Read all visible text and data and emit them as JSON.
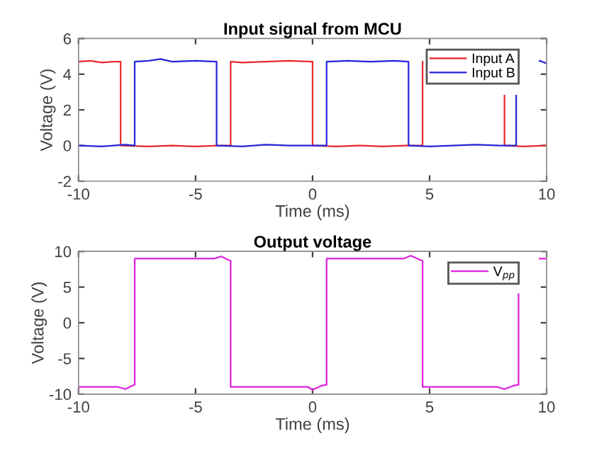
{
  "chart_data": [
    {
      "type": "line",
      "title": "Input signal from MCU",
      "xlabel": "Time (ms)",
      "ylabel": "Voltage (V)",
      "xlim": [
        -10,
        10
      ],
      "xticks": [
        -10,
        -5,
        0,
        5,
        10
      ],
      "ylim": [
        -2,
        6
      ],
      "yticks": [
        -2,
        0,
        2,
        4,
        6
      ],
      "legend": "top right",
      "grid": false,
      "series": [
        {
          "name": "Input A",
          "color": "#e8282b",
          "x": [
            -10,
            -9.5,
            -9,
            -8.5,
            -8.2,
            -8.2,
            -7,
            -6,
            -5,
            -4,
            -3.5,
            -3.5,
            -3,
            -2,
            -1,
            0,
            0,
            1,
            2,
            3,
            4,
            4.7,
            4.7,
            5.0,
            6.5,
            8.2,
            8.2,
            9,
            10
          ],
          "values": [
            4.7,
            4.75,
            4.65,
            4.7,
            4.7,
            0,
            -0.05,
            0,
            -0.05,
            0,
            0,
            4.7,
            4.65,
            4.7,
            4.75,
            4.7,
            0,
            -0.05,
            0,
            -0.05,
            0,
            0,
            4.7,
            null,
            null,
            2.8,
            0,
            -0.05,
            0
          ]
        },
        {
          "name": "Input B",
          "color": "#2525d8",
          "x": [
            -10,
            -9,
            -8,
            -7.6,
            -7.6,
            -7,
            -6.5,
            -6,
            -5,
            -4.1,
            -4.1,
            -3,
            -2,
            -1,
            0.6,
            0.6,
            1.5,
            2.5,
            3.5,
            4.1,
            4.1,
            5,
            6,
            7,
            8,
            8.7,
            8.7,
            9.2,
            9.7,
            10
          ],
          "values": [
            0,
            -0.05,
            0.05,
            0,
            4.7,
            4.75,
            4.85,
            4.7,
            4.75,
            4.7,
            0,
            -0.05,
            0.05,
            0,
            0,
            4.7,
            4.75,
            4.7,
            4.75,
            4.7,
            0,
            -0.05,
            0,
            0.05,
            0,
            0,
            2.8,
            null,
            4.75,
            4.6
          ]
        }
      ]
    },
    {
      "type": "line",
      "title": "Output voltage",
      "xlabel": "Time (ms)",
      "ylabel": "Voltage (V)",
      "xlim": [
        -10,
        10
      ],
      "xticks": [
        -10,
        -5,
        0,
        5,
        10
      ],
      "ylim": [
        -10,
        10
      ],
      "yticks": [
        -10,
        -5,
        0,
        5,
        10
      ],
      "legend": "top right",
      "grid": false,
      "series": [
        {
          "name": "V$_{pp}$",
          "color": "#e020e0",
          "x": [
            -10,
            -9,
            -8.3,
            -8,
            -7.7,
            -7.6,
            -7.6,
            -6.5,
            -5,
            -4.2,
            -3.9,
            -3.6,
            -3.5,
            -3.5,
            -2.5,
            -1,
            -0.2,
            0,
            0.4,
            0.6,
            0.6,
            1.5,
            3,
            3.9,
            4.2,
            4.6,
            4.7,
            4.7,
            5.5,
            7,
            7.9,
            8.2,
            8.6,
            8.8,
            8.8,
            9.2,
            9.7,
            10
          ],
          "values": [
            -9,
            -9,
            -9,
            -9.3,
            -8.8,
            -8.7,
            9,
            9,
            9,
            9,
            9.3,
            8.8,
            8.7,
            -9,
            -9,
            -9,
            -9,
            -9.4,
            -8.8,
            -8.7,
            9,
            9,
            9,
            9,
            9.4,
            8.8,
            8.7,
            -9,
            -9,
            -9,
            -9,
            -9.3,
            -8.8,
            -8.7,
            4,
            null,
            9,
            9
          ]
        }
      ]
    }
  ]
}
